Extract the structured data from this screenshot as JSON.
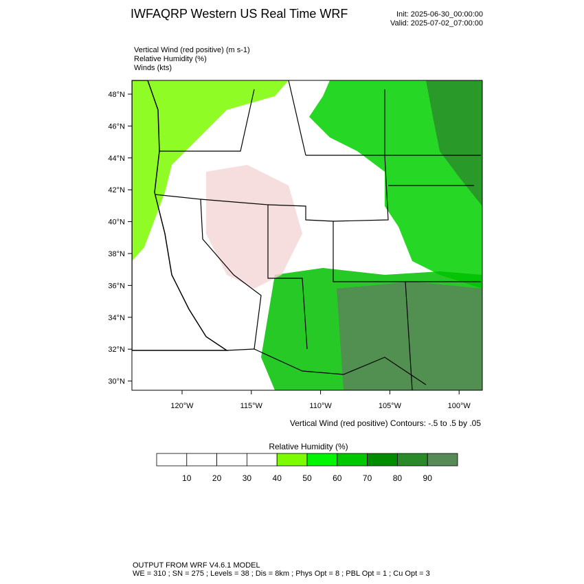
{
  "header": {
    "title": "IWFAQRP Western US Real Time WRF",
    "init": "Init: 2025-06-30_00:00:00",
    "valid": "Valid: 2025-07-02_07:00:00"
  },
  "fields": [
    "Vertical Wind (red positive)   (m s-1)",
    "Relative Humidity   (%)",
    "Winds   (kts)"
  ],
  "map": {
    "lat_ticks": [
      "48°N",
      "46°N",
      "44°N",
      "42°N",
      "40°N",
      "38°N",
      "36°N",
      "34°N",
      "32°N",
      "30°N"
    ],
    "lon_ticks": [
      "120°W",
      "115°W",
      "110°W",
      "105°W",
      "100°W"
    ],
    "contour_note": "Vertical Wind (red positive) Contours: -.5 to .5 by .05"
  },
  "colorbar": {
    "title": "Relative Humidity  (%)",
    "colors": [
      "#ffffff",
      "#ffffff",
      "#ffffff",
      "#ffffff",
      "#7dfc00",
      "#00f500",
      "#00c800",
      "#008c00",
      "#2a8a2a",
      "#568a56"
    ],
    "labels": [
      10,
      20,
      30,
      40,
      50,
      60,
      70,
      80,
      90
    ]
  },
  "footer": {
    "line1": "OUTPUT FROM WRF V4.6.1 MODEL",
    "line2": "WE = 310 ; SN = 275 ; Levels = 38 ; Dis = 8km ; Phys Opt = 8 ; PBL Opt = 1 ; Cu Opt = 3"
  }
}
